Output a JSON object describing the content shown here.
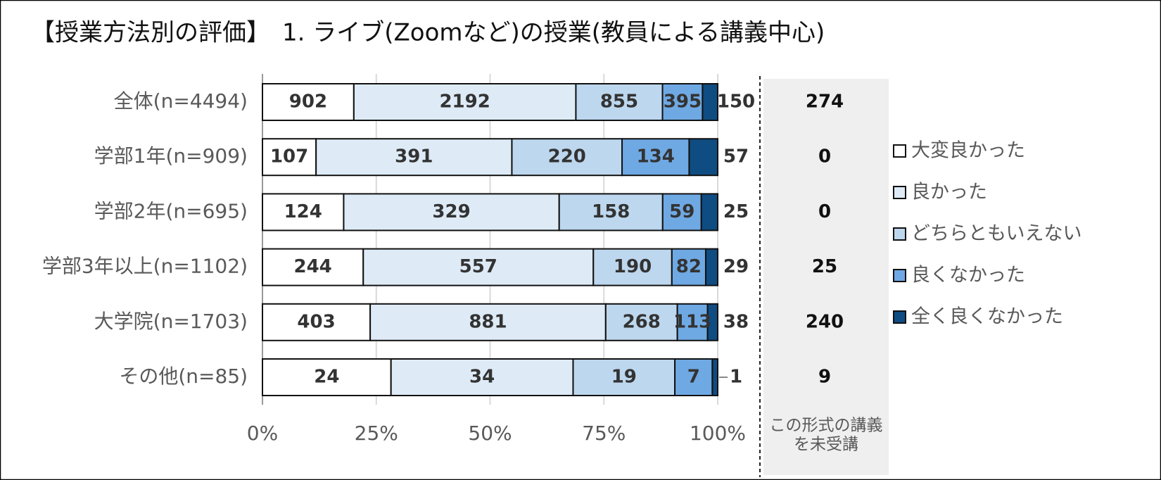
{
  "chart_data": {
    "type": "stacked_bar_100",
    "title": "【授業方法別の評価】　1. ライブ(Zoomなど)の授業(教員による講義中心)",
    "categories": [
      "全体(n=4494)",
      "学部1年(n=909)",
      "学部2年(n=695)",
      "学部3年以上(n=1102)",
      "大学院(n=1703)",
      "その他(n=85)"
    ],
    "series": [
      {
        "name": "大変良かった",
        "color": "#ffffff",
        "values": [
          902,
          107,
          124,
          244,
          403,
          24
        ]
      },
      {
        "name": "良かった",
        "color": "#deebf7",
        "values": [
          2192,
          391,
          329,
          557,
          881,
          34
        ]
      },
      {
        "name": "どちらともいえない",
        "color": "#bdd7ee",
        "values": [
          855,
          220,
          158,
          190,
          268,
          19
        ]
      },
      {
        "name": "良くなかった",
        "color": "#6fa9e3",
        "values": [
          395,
          134,
          59,
          82,
          113,
          7
        ]
      },
      {
        "name": "全く良くなかった",
        "color": "#0f4c81",
        "values": [
          150,
          57,
          25,
          29,
          38,
          1
        ]
      }
    ],
    "untaken": {
      "label_lines": [
        "この形式の講義",
        "を未受講"
      ],
      "values": [
        274,
        0,
        0,
        25,
        240,
        9
      ]
    },
    "xlim": [
      0,
      100
    ],
    "xticks": [
      {
        "value": 0,
        "label": "0%"
      },
      {
        "value": 25,
        "label": "25%"
      },
      {
        "value": 50,
        "label": "50%"
      },
      {
        "value": 75,
        "label": "75%"
      },
      {
        "value": 100,
        "label": "100%"
      }
    ],
    "grid": true,
    "legend": "right"
  }
}
